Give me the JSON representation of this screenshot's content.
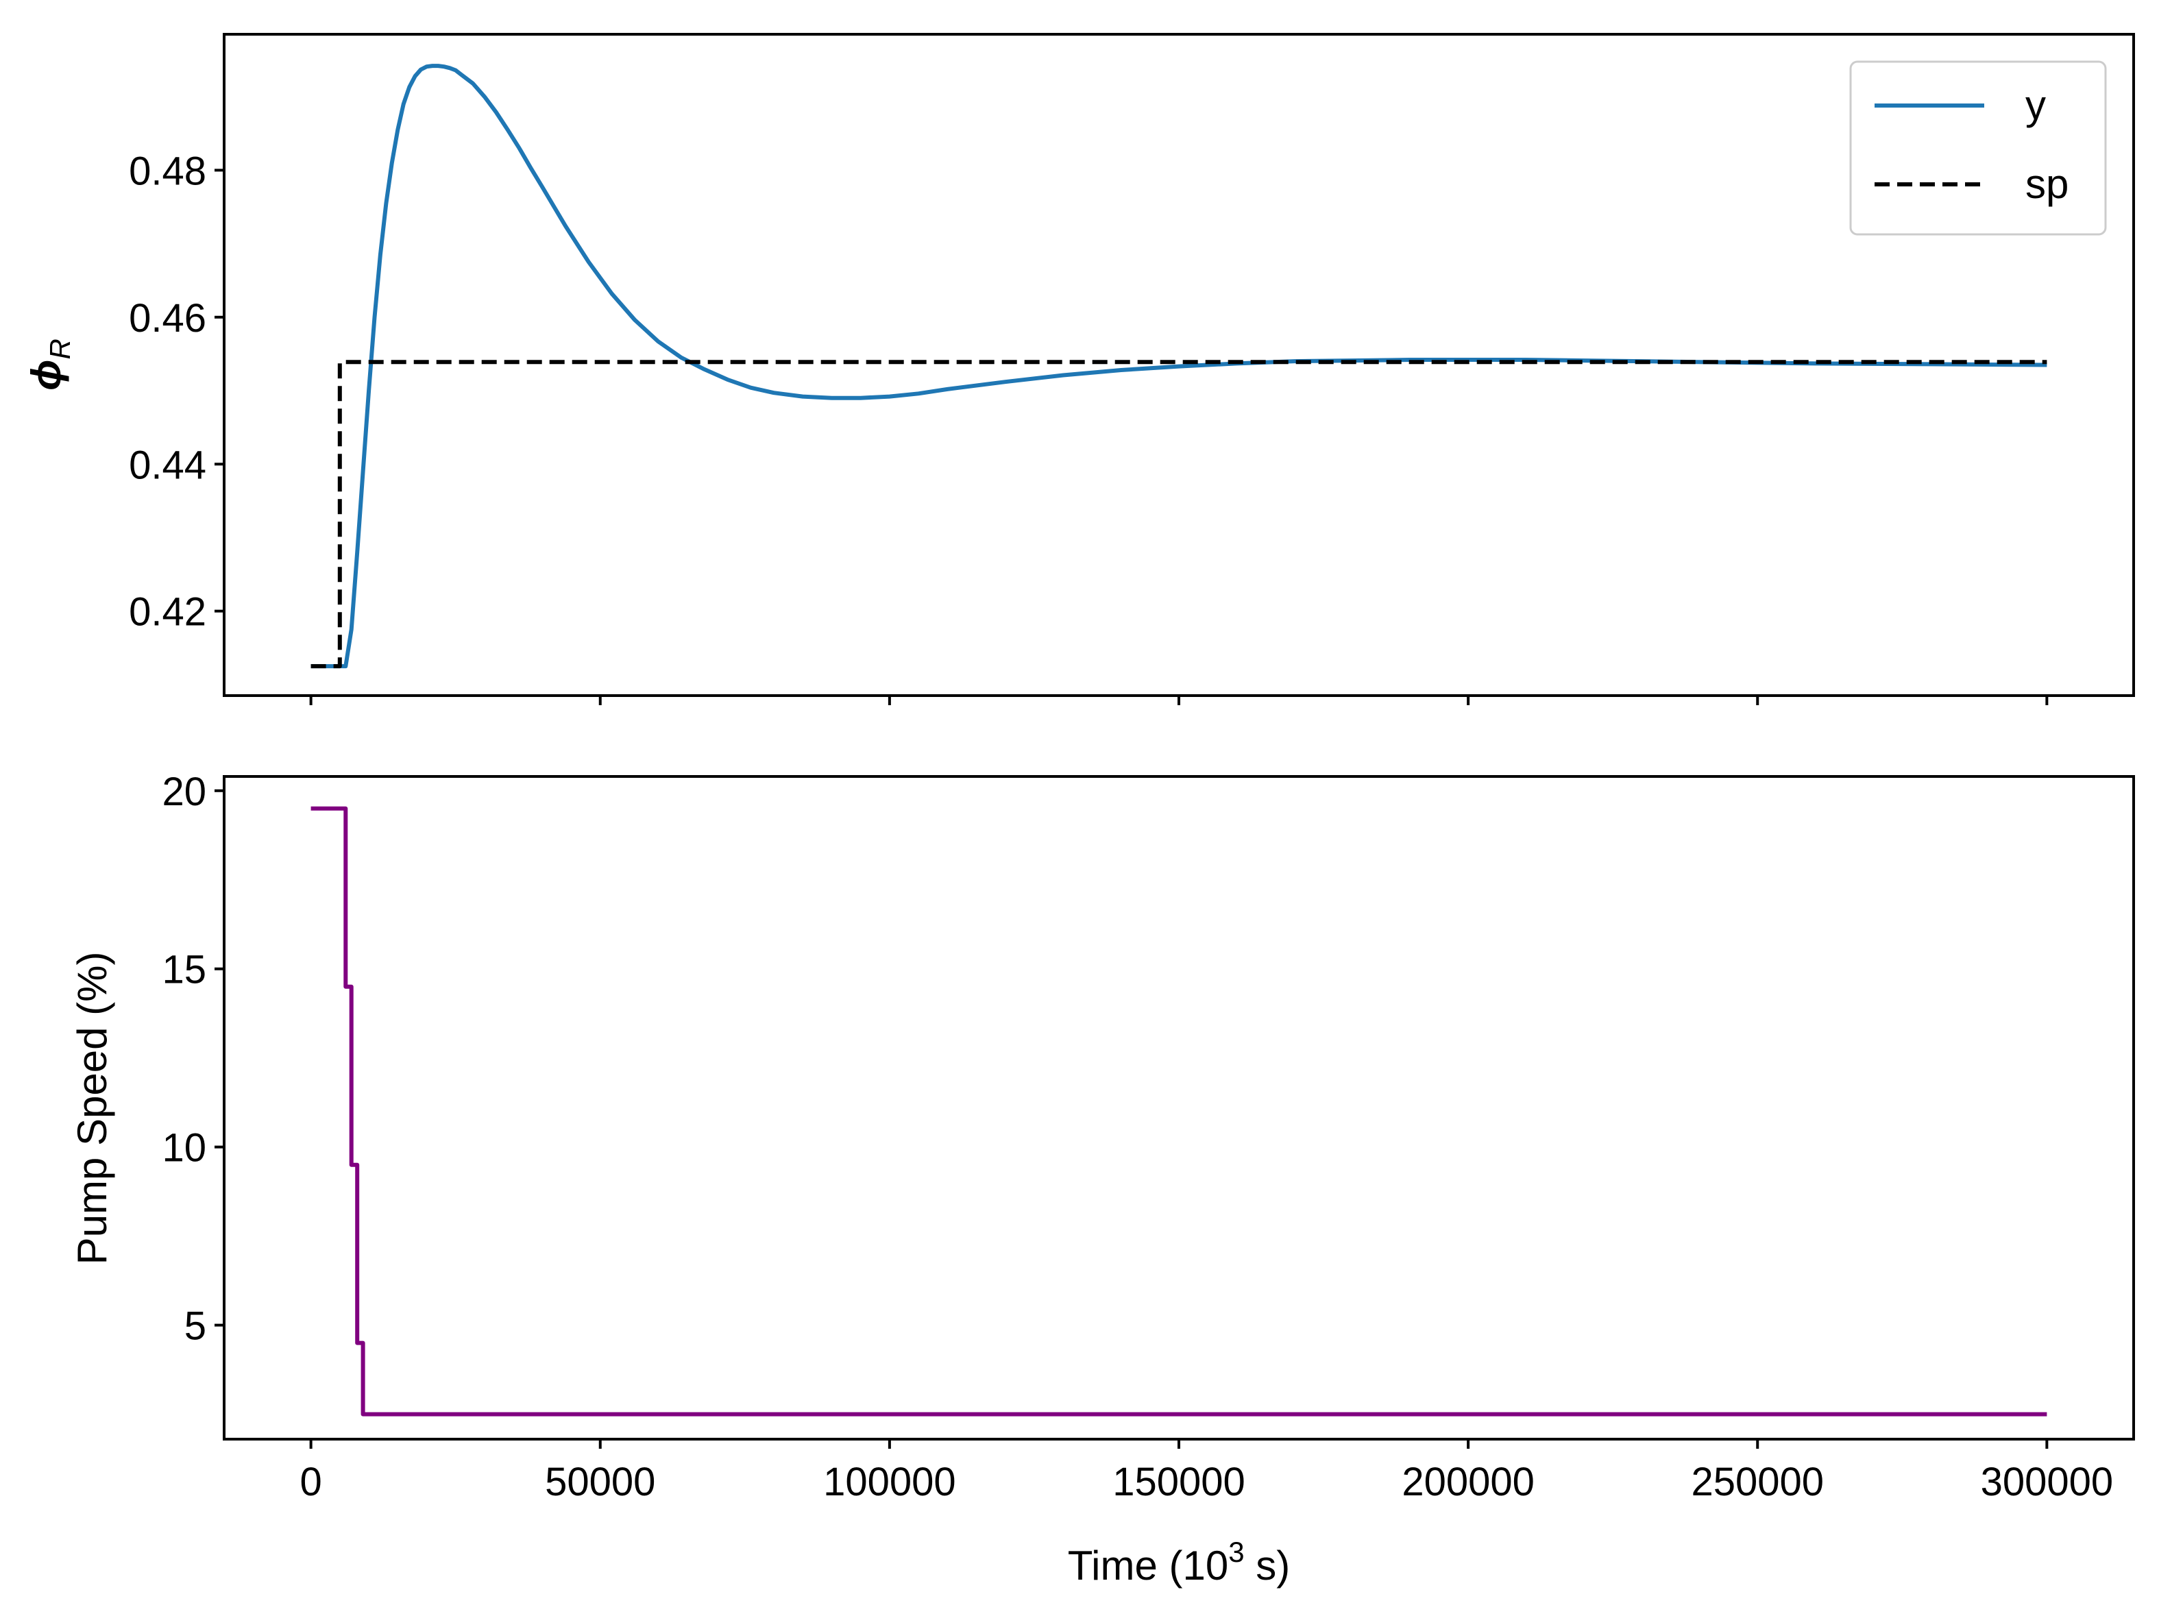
{
  "chart_data": [
    {
      "type": "line",
      "ylabel": "ϕR",
      "ylabel_main": "ϕ",
      "ylabel_sub": "R",
      "xlim": [
        -15000,
        315000
      ],
      "ylim": [
        0.4085,
        0.4985
      ],
      "x_ticks": [
        0,
        50000,
        100000,
        150000,
        200000,
        250000,
        300000
      ],
      "y_ticks": [
        0.42,
        0.44,
        0.46,
        0.48
      ],
      "y_tick_labels": [
        "0.42",
        "0.44",
        "0.46",
        "0.48"
      ],
      "legend_position": "top-right",
      "grid": false,
      "series": [
        {
          "name": "y",
          "color": "#1f77b4",
          "style": "solid",
          "x": [
            0,
            6000,
            7000,
            8000,
            9000,
            10000,
            11000,
            12000,
            13000,
            14000,
            15000,
            16000,
            17000,
            18000,
            19000,
            20000,
            21000,
            22000,
            23000,
            24000,
            25000,
            26000,
            28000,
            30000,
            32000,
            34000,
            36000,
            38000,
            40000,
            44000,
            48000,
            52000,
            56000,
            60000,
            64000,
            68000,
            72000,
            76000,
            80000,
            85000,
            90000,
            95000,
            100000,
            105000,
            110000,
            120000,
            130000,
            140000,
            150000,
            160000,
            170000,
            180000,
            190000,
            200000,
            210000,
            220000,
            240000,
            260000,
            280000,
            300000
          ],
          "y": [
            0.4125,
            0.4125,
            0.4175,
            0.428,
            0.439,
            0.45,
            0.46,
            0.4685,
            0.4755,
            0.481,
            0.4855,
            0.489,
            0.4913,
            0.4928,
            0.4937,
            0.4941,
            0.4942,
            0.4942,
            0.4941,
            0.4939,
            0.4936,
            0.493,
            0.4918,
            0.49,
            0.4879,
            0.4855,
            0.483,
            0.4803,
            0.4777,
            0.4724,
            0.4675,
            0.4632,
            0.4596,
            0.4567,
            0.4545,
            0.4529,
            0.4515,
            0.4504,
            0.4497,
            0.4492,
            0.449,
            0.449,
            0.4492,
            0.4496,
            0.4502,
            0.4512,
            0.4521,
            0.4528,
            0.4533,
            0.4537,
            0.454,
            0.4541,
            0.4542,
            0.4542,
            0.4542,
            0.4541,
            0.4539,
            0.4537,
            0.4536,
            0.4535
          ]
        },
        {
          "name": "sp",
          "color": "#000000",
          "style": "dashed",
          "x": [
            0,
            5000,
            5000,
            300000
          ],
          "y": [
            0.4125,
            0.4125,
            0.4539,
            0.4539
          ]
        }
      ]
    },
    {
      "type": "line",
      "xlabel": "Time (10³ s)",
      "xlabel_pre": "Time (10",
      "xlabel_sup": "3",
      "xlabel_post": " s)",
      "ylabel": "Pump Speed (%)",
      "xlim": [
        -15000,
        315000
      ],
      "ylim": [
        1.8,
        20.4
      ],
      "x_ticks": [
        0,
        50000,
        100000,
        150000,
        200000,
        250000,
        300000
      ],
      "x_tick_labels": [
        "0",
        "50000",
        "100000",
        "150000",
        "200000",
        "250000",
        "300000"
      ],
      "y_ticks": [
        5,
        10,
        15,
        20
      ],
      "y_tick_labels": [
        "5",
        "10",
        "15",
        "20"
      ],
      "grid": false,
      "series": [
        {
          "color": "#800080",
          "style": "steps",
          "x": [
            0,
            6000,
            6000,
            7000,
            7000,
            8000,
            8000,
            9000,
            9000,
            300000
          ],
          "y": [
            19.5,
            19.5,
            14.5,
            14.5,
            9.5,
            9.5,
            4.5,
            4.5,
            2.5,
            2.5
          ]
        }
      ]
    }
  ]
}
